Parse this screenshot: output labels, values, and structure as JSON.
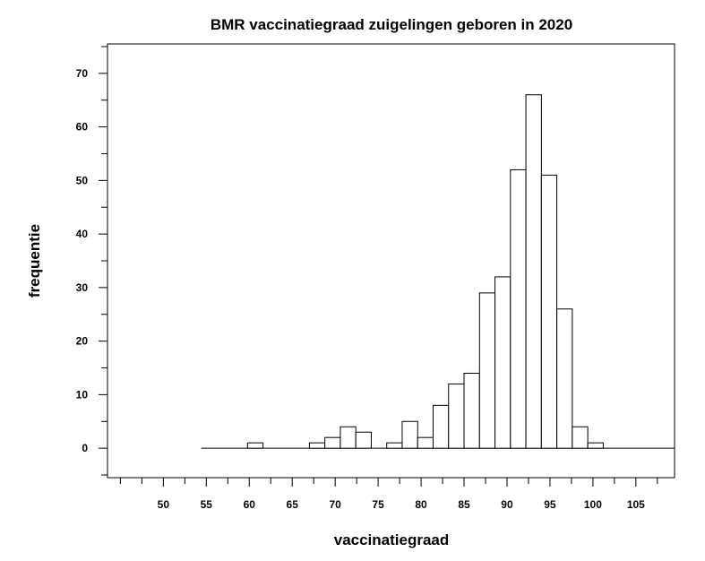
{
  "chart_data": {
    "type": "bar",
    "title": "BMR vaccinatiegraad zuigelingen geboren in 2020",
    "xlabel": "vaccinatiegraad",
    "ylabel": "frequentie",
    "xlim": [
      43.5,
      109.5
    ],
    "ylim": [
      -5.5,
      75.5
    ],
    "x_ticks": [
      50,
      55,
      60,
      65,
      70,
      75,
      80,
      85,
      90,
      95,
      100,
      105
    ],
    "y_ticks": [
      0,
      10,
      20,
      30,
      40,
      50,
      60,
      70
    ],
    "bin_width": 1.8,
    "bins": [
      {
        "start": 54.4,
        "value": 0
      },
      {
        "start": 56.2,
        "value": 0
      },
      {
        "start": 58.0,
        "value": 0
      },
      {
        "start": 59.8,
        "value": 1
      },
      {
        "start": 61.6,
        "value": 0
      },
      {
        "start": 63.4,
        "value": 0
      },
      {
        "start": 65.2,
        "value": 0
      },
      {
        "start": 67.0,
        "value": 1
      },
      {
        "start": 68.8,
        "value": 2
      },
      {
        "start": 70.6,
        "value": 4
      },
      {
        "start": 72.4,
        "value": 3
      },
      {
        "start": 74.2,
        "value": 0
      },
      {
        "start": 76.0,
        "value": 1
      },
      {
        "start": 77.8,
        "value": 5
      },
      {
        "start": 79.6,
        "value": 2
      },
      {
        "start": 81.4,
        "value": 8
      },
      {
        "start": 83.2,
        "value": 12
      },
      {
        "start": 85.0,
        "value": 14
      },
      {
        "start": 86.8,
        "value": 29
      },
      {
        "start": 88.6,
        "value": 32
      },
      {
        "start": 90.4,
        "value": 52
      },
      {
        "start": 92.2,
        "value": 66
      },
      {
        "start": 94.0,
        "value": 51
      },
      {
        "start": 95.8,
        "value": 26
      },
      {
        "start": 97.6,
        "value": 4
      },
      {
        "start": 99.4,
        "value": 1
      },
      {
        "start": 101.2,
        "value": 0
      },
      {
        "start": 103.0,
        "value": 0
      },
      {
        "start": 104.8,
        "value": 0
      },
      {
        "start": 106.6,
        "value": 0
      },
      {
        "start": 108.4,
        "value": 0
      }
    ],
    "grid": false,
    "colors": {
      "bar_fill": "#ffffff",
      "bar_stroke": "#000000",
      "axis": "#000000"
    }
  }
}
